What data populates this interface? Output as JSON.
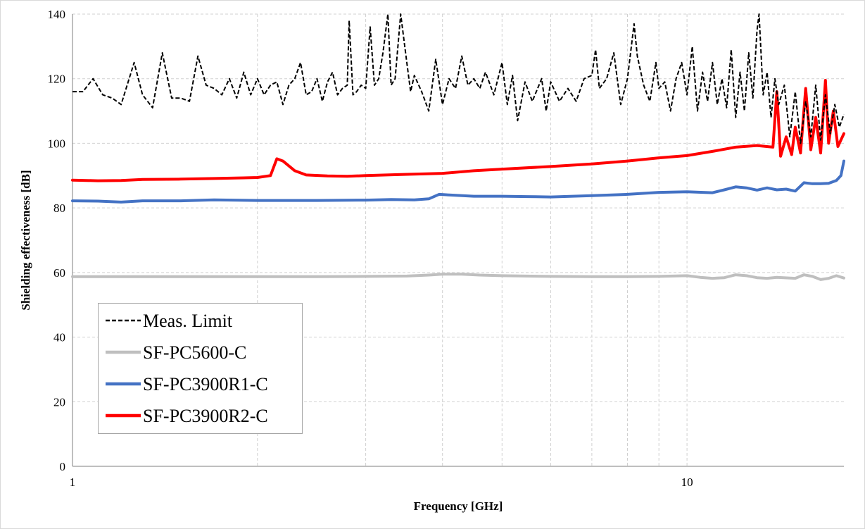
{
  "chart_data": {
    "type": "line",
    "xlabel": "Frequency [GHz]",
    "ylabel": "Shielding effectiveness [dB]",
    "xscale": "log",
    "xlim": [
      1,
      18
    ],
    "ylim": [
      0,
      140
    ],
    "xticks": [
      1,
      10
    ],
    "yticks": [
      0,
      20,
      40,
      60,
      80,
      100,
      120,
      140
    ],
    "grid": true,
    "legend_position": "bottom-left",
    "series": [
      {
        "name": "Meas. Limit",
        "color": "#000000",
        "style": "dashed",
        "points": [
          [
            1.0,
            116
          ],
          [
            1.04,
            116
          ],
          [
            1.08,
            120
          ],
          [
            1.12,
            115
          ],
          [
            1.16,
            114
          ],
          [
            1.2,
            112
          ],
          [
            1.26,
            125
          ],
          [
            1.3,
            115
          ],
          [
            1.35,
            111
          ],
          [
            1.4,
            128
          ],
          [
            1.45,
            114
          ],
          [
            1.5,
            114
          ],
          [
            1.55,
            113
          ],
          [
            1.6,
            127
          ],
          [
            1.65,
            118
          ],
          [
            1.7,
            117
          ],
          [
            1.75,
            115
          ],
          [
            1.8,
            120
          ],
          [
            1.85,
            114
          ],
          [
            1.9,
            122
          ],
          [
            1.95,
            115
          ],
          [
            2.0,
            120
          ],
          [
            2.05,
            115
          ],
          [
            2.1,
            118
          ],
          [
            2.15,
            119
          ],
          [
            2.2,
            112
          ],
          [
            2.25,
            118
          ],
          [
            2.3,
            120
          ],
          [
            2.35,
            125
          ],
          [
            2.4,
            115
          ],
          [
            2.45,
            116
          ],
          [
            2.5,
            120
          ],
          [
            2.55,
            113
          ],
          [
            2.6,
            119
          ],
          [
            2.65,
            122
          ],
          [
            2.7,
            115
          ],
          [
            2.75,
            117
          ],
          [
            2.8,
            118
          ],
          [
            2.82,
            138
          ],
          [
            2.86,
            115
          ],
          [
            2.9,
            116
          ],
          [
            2.95,
            118
          ],
          [
            3.0,
            117
          ],
          [
            3.05,
            136
          ],
          [
            3.1,
            118
          ],
          [
            3.15,
            120
          ],
          [
            3.2,
            128
          ],
          [
            3.26,
            140
          ],
          [
            3.3,
            118
          ],
          [
            3.35,
            120
          ],
          [
            3.42,
            140
          ],
          [
            3.5,
            125
          ],
          [
            3.55,
            116
          ],
          [
            3.6,
            121
          ],
          [
            3.7,
            116
          ],
          [
            3.8,
            110
          ],
          [
            3.9,
            126
          ],
          [
            4.0,
            112
          ],
          [
            4.1,
            120
          ],
          [
            4.2,
            117
          ],
          [
            4.3,
            127
          ],
          [
            4.4,
            118
          ],
          [
            4.5,
            120
          ],
          [
            4.6,
            117
          ],
          [
            4.7,
            122
          ],
          [
            4.85,
            115
          ],
          [
            5.0,
            125
          ],
          [
            5.1,
            112
          ],
          [
            5.2,
            121
          ],
          [
            5.3,
            107
          ],
          [
            5.45,
            119
          ],
          [
            5.6,
            113
          ],
          [
            5.8,
            120
          ],
          [
            5.9,
            110
          ],
          [
            6.0,
            119
          ],
          [
            6.2,
            113
          ],
          [
            6.4,
            117
          ],
          [
            6.6,
            113
          ],
          [
            6.8,
            120
          ],
          [
            7.0,
            121
          ],
          [
            7.1,
            129
          ],
          [
            7.2,
            117
          ],
          [
            7.4,
            120
          ],
          [
            7.6,
            128
          ],
          [
            7.8,
            112
          ],
          [
            8.0,
            120
          ],
          [
            8.2,
            137
          ],
          [
            8.3,
            127
          ],
          [
            8.5,
            118
          ],
          [
            8.7,
            113
          ],
          [
            8.9,
            125
          ],
          [
            9.0,
            117
          ],
          [
            9.2,
            119
          ],
          [
            9.4,
            110
          ],
          [
            9.6,
            120
          ],
          [
            9.8,
            125
          ],
          [
            10.0,
            115
          ],
          [
            10.2,
            130
          ],
          [
            10.4,
            110
          ],
          [
            10.6,
            122
          ],
          [
            10.8,
            113
          ],
          [
            11.0,
            125
          ],
          [
            11.2,
            112
          ],
          [
            11.4,
            120
          ],
          [
            11.6,
            111
          ],
          [
            11.8,
            129
          ],
          [
            12.0,
            108
          ],
          [
            12.2,
            122
          ],
          [
            12.4,
            110
          ],
          [
            12.6,
            128
          ],
          [
            12.8,
            114
          ],
          [
            13.0,
            135
          ],
          [
            13.1,
            140
          ],
          [
            13.3,
            115
          ],
          [
            13.5,
            122
          ],
          [
            13.7,
            108
          ],
          [
            13.9,
            120
          ],
          [
            14.1,
            112
          ],
          [
            14.4,
            118
          ],
          [
            14.7,
            102
          ],
          [
            15.0,
            116
          ],
          [
            15.3,
            100
          ],
          [
            15.6,
            113
          ],
          [
            15.9,
            102
          ],
          [
            16.2,
            118
          ],
          [
            16.5,
            101
          ],
          [
            16.8,
            115
          ],
          [
            17.1,
            103
          ],
          [
            17.4,
            112
          ],
          [
            17.7,
            105
          ],
          [
            18.0,
            109
          ]
        ]
      },
      {
        "name": "SF-PC5600-C",
        "color": "#bfbfbf",
        "style": "solid",
        "points": [
          [
            1.0,
            58.7
          ],
          [
            1.5,
            58.7
          ],
          [
            2.0,
            58.7
          ],
          [
            2.5,
            58.7
          ],
          [
            3.0,
            58.8
          ],
          [
            3.5,
            58.9
          ],
          [
            3.8,
            59.2
          ],
          [
            4.0,
            59.5
          ],
          [
            4.3,
            59.5
          ],
          [
            4.6,
            59.2
          ],
          [
            5.0,
            59.0
          ],
          [
            6.0,
            58.8
          ],
          [
            7.0,
            58.7
          ],
          [
            8.0,
            58.7
          ],
          [
            9.0,
            58.8
          ],
          [
            10.0,
            59.0
          ],
          [
            10.5,
            58.5
          ],
          [
            11.0,
            58.2
          ],
          [
            11.5,
            58.4
          ],
          [
            12.0,
            59.3
          ],
          [
            12.5,
            59.0
          ],
          [
            13.0,
            58.4
          ],
          [
            13.5,
            58.2
          ],
          [
            14.0,
            58.5
          ],
          [
            15.0,
            58.2
          ],
          [
            15.5,
            59.3
          ],
          [
            16.0,
            58.8
          ],
          [
            16.5,
            57.8
          ],
          [
            17.0,
            58.2
          ],
          [
            17.5,
            59.0
          ],
          [
            18.0,
            58.3
          ]
        ]
      },
      {
        "name": "SF-PC3900R1-C",
        "color": "#4472c4",
        "style": "solid",
        "points": [
          [
            1.0,
            82.2
          ],
          [
            1.1,
            82.1
          ],
          [
            1.2,
            81.8
          ],
          [
            1.3,
            82.2
          ],
          [
            1.5,
            82.2
          ],
          [
            1.7,
            82.5
          ],
          [
            2.0,
            82.3
          ],
          [
            2.5,
            82.3
          ],
          [
            3.0,
            82.4
          ],
          [
            3.3,
            82.6
          ],
          [
            3.6,
            82.5
          ],
          [
            3.8,
            82.8
          ],
          [
            3.95,
            84.2
          ],
          [
            4.1,
            84.0
          ],
          [
            4.5,
            83.6
          ],
          [
            5.0,
            83.6
          ],
          [
            5.5,
            83.5
          ],
          [
            6.0,
            83.4
          ],
          [
            7.0,
            83.8
          ],
          [
            8.0,
            84.2
          ],
          [
            9.0,
            84.8
          ],
          [
            10.0,
            85.0
          ],
          [
            11.0,
            84.7
          ],
          [
            11.5,
            85.6
          ],
          [
            12.0,
            86.5
          ],
          [
            12.5,
            86.2
          ],
          [
            13.0,
            85.5
          ],
          [
            13.5,
            86.2
          ],
          [
            14.0,
            85.6
          ],
          [
            14.5,
            85.8
          ],
          [
            15.0,
            85.2
          ],
          [
            15.5,
            87.8
          ],
          [
            16.0,
            87.5
          ],
          [
            16.5,
            87.5
          ],
          [
            17.0,
            87.6
          ],
          [
            17.5,
            88.5
          ],
          [
            17.8,
            90.0
          ],
          [
            18.0,
            94.5
          ]
        ]
      },
      {
        "name": "SF-PC3900R2-C",
        "color": "#ff0000",
        "style": "solid",
        "points": [
          [
            1.0,
            88.6
          ],
          [
            1.1,
            88.4
          ],
          [
            1.2,
            88.5
          ],
          [
            1.3,
            88.8
          ],
          [
            1.5,
            88.9
          ],
          [
            1.7,
            89.1
          ],
          [
            1.9,
            89.3
          ],
          [
            2.0,
            89.4
          ],
          [
            2.1,
            90.0
          ],
          [
            2.15,
            95.2
          ],
          [
            2.2,
            94.5
          ],
          [
            2.3,
            91.5
          ],
          [
            2.4,
            90.2
          ],
          [
            2.6,
            89.9
          ],
          [
            2.8,
            89.8
          ],
          [
            3.0,
            90.0
          ],
          [
            3.5,
            90.4
          ],
          [
            4.0,
            90.7
          ],
          [
            4.5,
            91.5
          ],
          [
            5.0,
            92.0
          ],
          [
            6.0,
            92.8
          ],
          [
            7.0,
            93.6
          ],
          [
            8.0,
            94.5
          ],
          [
            9.0,
            95.5
          ],
          [
            10.0,
            96.2
          ],
          [
            11.0,
            97.5
          ],
          [
            12.0,
            98.8
          ],
          [
            13.0,
            99.3
          ],
          [
            13.8,
            98.8
          ],
          [
            14.0,
            116
          ],
          [
            14.2,
            96.0
          ],
          [
            14.5,
            102
          ],
          [
            14.8,
            96.5
          ],
          [
            15.0,
            105
          ],
          [
            15.3,
            97.0
          ],
          [
            15.6,
            117
          ],
          [
            15.9,
            98.0
          ],
          [
            16.2,
            108
          ],
          [
            16.5,
            97.0
          ],
          [
            16.8,
            119.5
          ],
          [
            17.0,
            100
          ],
          [
            17.3,
            110
          ],
          [
            17.6,
            99.0
          ],
          [
            18.0,
            103
          ]
        ]
      }
    ]
  }
}
